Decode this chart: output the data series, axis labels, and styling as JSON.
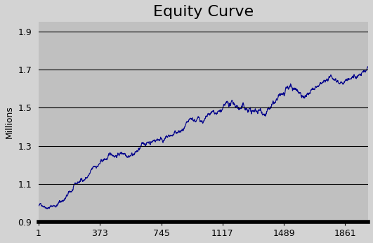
{
  "title": "Equity Curve",
  "ylabel": "Millions",
  "xlabel": "",
  "xlim": [
    1,
    2000
  ],
  "ylim": [
    0.9,
    1.95
  ],
  "xticks": [
    1,
    373,
    745,
    1117,
    1489,
    1861
  ],
  "yticks": [
    0.9,
    1.1,
    1.3,
    1.5,
    1.7,
    1.9
  ],
  "background_color": "#c0c0c0",
  "fig_background_color": "#d3d3d3",
  "line_color": "#00008b",
  "title_fontsize": 16,
  "axis_label_fontsize": 9,
  "tick_fontsize": 9,
  "line_width": 0.8,
  "n_points": 2000,
  "start_value": 1.0,
  "segments": [
    {
      "end": 100,
      "drift": 0.0003,
      "vol": 0.003
    },
    {
      "end": 370,
      "drift": 0.00085,
      "vol": 0.004
    },
    {
      "end": 500,
      "drift": 0.0005,
      "vol": 0.0035
    },
    {
      "end": 745,
      "drift": 0.00065,
      "vol": 0.004
    },
    {
      "end": 850,
      "drift": 0.0001,
      "vol": 0.004
    },
    {
      "end": 1000,
      "drift": -0.0001,
      "vol": 0.004
    },
    {
      "end": 1100,
      "drift": 0.0001,
      "vol": 0.004
    },
    {
      "end": 1200,
      "drift": -0.0002,
      "vol": 0.005
    },
    {
      "end": 1320,
      "drift": -0.0006,
      "vol": 0.006
    },
    {
      "end": 1400,
      "drift": 0.0005,
      "vol": 0.005
    },
    {
      "end": 1500,
      "drift": 0.0001,
      "vol": 0.005
    },
    {
      "end": 1600,
      "drift": -0.0001,
      "vol": 0.005
    },
    {
      "end": 1650,
      "drift": -0.0003,
      "vol": 0.005
    },
    {
      "end": 1750,
      "drift": 0.0002,
      "vol": 0.004
    },
    {
      "end": 1850,
      "drift": 0.00015,
      "vol": 0.004
    },
    {
      "end": 1920,
      "drift": 0.0005,
      "vol": 0.004
    },
    {
      "end": 2001,
      "drift": 0.0003,
      "vol": 0.004
    }
  ],
  "seed": 42
}
